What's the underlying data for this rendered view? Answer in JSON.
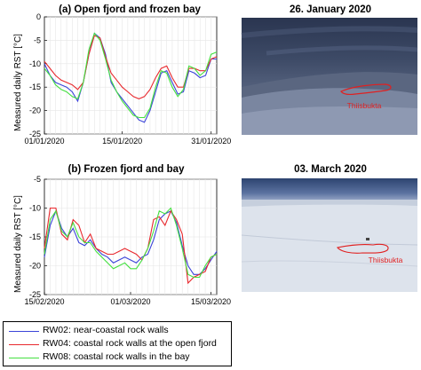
{
  "chart_data": [
    {
      "type": "line",
      "title": "(a) Open fjord and frozen bay",
      "ylabel": "Measured daily RST [°C]",
      "xlabel": "",
      "ylim": [
        -25,
        0
      ],
      "yticks": [
        -25,
        -20,
        -15,
        -10,
        -5,
        0
      ],
      "xtick_labels": [
        "01/01/2020",
        "15/01/2020",
        "31/01/2020"
      ],
      "x_start": "2020-01-01",
      "x_end": "2020-02-01",
      "grid": true,
      "series": [
        {
          "name": "RW02",
          "color": "#3b44d8",
          "values": [
            -10.0,
            -12.5,
            -14,
            -14.5,
            -15,
            -16,
            -18,
            -14,
            -8,
            -3.5,
            -4.5,
            -8,
            -14,
            -16,
            -17.5,
            -19,
            -20.5,
            -22,
            -22.5,
            -20,
            -16,
            -12,
            -11.5,
            -14,
            -16.5,
            -16,
            -11.5,
            -12,
            -13,
            -12.5,
            -9,
            -9
          ]
        },
        {
          "name": "RW04",
          "color": "#e8292e",
          "values": [
            -9.5,
            -11,
            -12.5,
            -13.5,
            -14,
            -14.5,
            -15.5,
            -14,
            -8,
            -4,
            -4.5,
            -8.5,
            -12,
            -13.5,
            -15,
            -16,
            -17,
            -17.5,
            -17,
            -15.5,
            -13,
            -11,
            -10.5,
            -13,
            -15,
            -15,
            -11,
            -11,
            -11.5,
            -11.5,
            -9,
            -8.5
          ]
        },
        {
          "name": "RW08",
          "color": "#44e040",
          "values": [
            -11.0,
            -12.5,
            -14.5,
            -15.5,
            -16,
            -17,
            -17.5,
            -14,
            -7,
            -3.5,
            -5,
            -9,
            -13.5,
            -16,
            -18,
            -19.5,
            -21,
            -21.5,
            -21.5,
            -19.5,
            -15,
            -11.5,
            -12,
            -15,
            -17,
            -15.5,
            -10.5,
            -11,
            -12.5,
            -11.5,
            -8,
            -7.5
          ]
        }
      ],
      "image_caption": "26. January 2020",
      "image_label": "Thiisbukta"
    },
    {
      "type": "line",
      "title": "(b) Frozen fjord and bay",
      "ylabel": "Measured daily RST [°C]",
      "xlabel": "",
      "ylim": [
        -25,
        -5
      ],
      "yticks": [
        -25,
        -20,
        -15,
        -10,
        -5
      ],
      "xtick_labels": [
        "15/02/2020",
        "01/03/2020",
        "15/03/2020"
      ],
      "x_start": "2020-02-15",
      "x_end": "2020-03-16",
      "grid": true,
      "series": [
        {
          "name": "RW02",
          "color": "#3b44d8",
          "values": [
            -18.5,
            -13,
            -10.5,
            -13.5,
            -15,
            -13.5,
            -16,
            -16.5,
            -15.5,
            -17,
            -18,
            -18.5,
            -19.5,
            -19,
            -18.5,
            -19,
            -19.5,
            -18.5,
            -18,
            -15.5,
            -12,
            -11,
            -10.5,
            -12.5,
            -16.5,
            -20,
            -21.5,
            -21.5,
            -20.5,
            -19,
            -17.5
          ]
        },
        {
          "name": "RW04",
          "color": "#e8292e",
          "values": [
            -17.0,
            -10,
            -10,
            -14.5,
            -15.5,
            -12,
            -13,
            -16,
            -14.5,
            -17,
            -17.5,
            -18,
            -18,
            -17.5,
            -17,
            -17.5,
            -18,
            -19,
            -17,
            -12,
            -11.5,
            -13,
            -10.5,
            -12,
            -14.5,
            -23,
            -22,
            -21.5,
            -21,
            -18.5,
            -18
          ]
        },
        {
          "name": "RW08",
          "color": "#44e040",
          "values": [
            -18.0,
            -12,
            -10.5,
            -14,
            -15,
            -12.5,
            -15,
            -16,
            -16,
            -17.5,
            -18.5,
            -19.5,
            -20.5,
            -20,
            -19.5,
            -20.5,
            -20.5,
            -19,
            -17,
            -14,
            -10.5,
            -11,
            -10,
            -13,
            -17,
            -21.5,
            -22,
            -22,
            -20,
            -18.5,
            -18
          ]
        }
      ],
      "image_caption": "03. March 2020",
      "image_label": "Thiisbukta"
    }
  ],
  "legend": {
    "entries": [
      {
        "label": "RW02: near-coastal rock walls",
        "color": "#3b44d8"
      },
      {
        "label": "RW04: coastal rock walls at the open fjord",
        "color": "#e8292e"
      },
      {
        "label": "RW08: coastal rock walls in the bay",
        "color": "#44e040"
      }
    ]
  }
}
